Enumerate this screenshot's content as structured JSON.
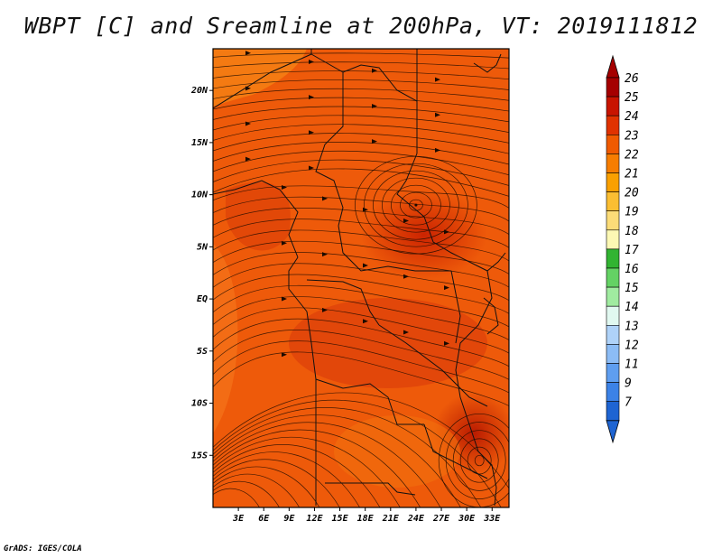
{
  "title": "WBPT [C] and Sreamline at 200hPa, VT: 2019111812",
  "credit": "GrADS: IGES/COLA",
  "map": {
    "lon_range": [
      0,
      35
    ],
    "lat_range": [
      -20,
      24
    ],
    "background_color": "#ee5a0a",
    "x_tick_labels": [
      "3E",
      "6E",
      "9E",
      "12E",
      "15E",
      "18E",
      "21E",
      "24E",
      "27E",
      "30E",
      "33E"
    ],
    "y_tick_labels": [
      "20N",
      "15N",
      "10N",
      "5N",
      "EQ",
      "5S",
      "10S",
      "15S"
    ],
    "vortex_centers": [
      {
        "lon": 24.0,
        "lat": 9.0
      },
      {
        "lon": 31.5,
        "lat": -15.5
      }
    ]
  },
  "colorbar": {
    "labels": [
      "26",
      "25",
      "24",
      "23",
      "22",
      "21",
      "20",
      "19",
      "18",
      "17",
      "16",
      "15",
      "14",
      "13",
      "12",
      "11",
      "9",
      "7"
    ],
    "colors": [
      "#a50000",
      "#c81400",
      "#e03200",
      "#f05a00",
      "#f77d00",
      "#faa000",
      "#fbbe32",
      "#fcdc78",
      "#fcf8b4",
      "#32b432",
      "#64d264",
      "#a0eba0",
      "#e1f8f0",
      "#afd2f8",
      "#8cbcf5",
      "#5f9ef0",
      "#3c82e6",
      "#1e64d2"
    ],
    "top_color": "#a50000",
    "bottom_color": "#1e64d2"
  }
}
